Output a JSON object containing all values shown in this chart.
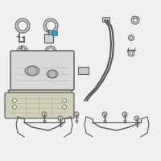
{
  "bg_color": "#f0f0f0",
  "dark_line": "#555555",
  "highlight_color": "#3399cc",
  "highlight_color2": "#44aadd",
  "figsize": [
    2.0,
    2.0
  ],
  "dpi": 100
}
